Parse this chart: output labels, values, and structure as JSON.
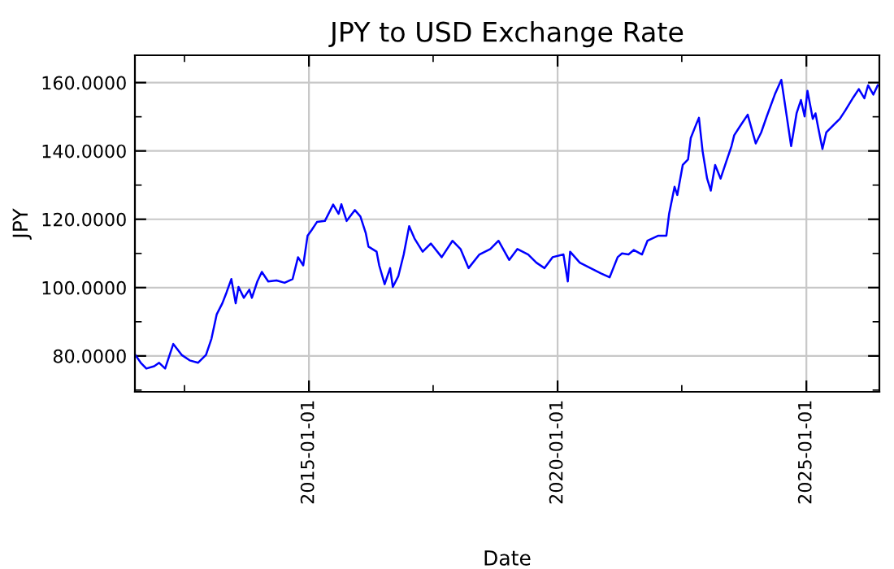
{
  "chart_data": {
    "type": "line",
    "title": "JPY to USD Exchange Rate",
    "xlabel": "Date",
    "ylabel": "JPY",
    "grid": true,
    "marker": "none",
    "line_style": "solid",
    "xlim": [
      "2011-07-03",
      "2026-06-21"
    ],
    "xticks": [
      {
        "value": "2012-07-01",
        "label": null
      },
      {
        "value": "2015-01-01",
        "label": "2015-01-01"
      },
      {
        "value": "2017-07-01",
        "label": null
      },
      {
        "value": "2020-01-01",
        "label": "2020-01-01"
      },
      {
        "value": "2022-07-01",
        "label": null
      },
      {
        "value": "2025-01-01",
        "label": "2025-01-01"
      }
    ],
    "ylim": [
      69.5,
      168
    ],
    "yticks": [
      {
        "value": 70,
        "label": null
      },
      {
        "value": 80,
        "label": "80.0000"
      },
      {
        "value": 90,
        "label": null
      },
      {
        "value": 100,
        "label": "100.0000"
      },
      {
        "value": 110,
        "label": null
      },
      {
        "value": 120,
        "label": "120.0000"
      },
      {
        "value": 130,
        "label": null
      },
      {
        "value": 140,
        "label": "140.0000"
      },
      {
        "value": 150,
        "label": null
      },
      {
        "value": 160,
        "label": "160.0000"
      }
    ],
    "x": [
      "2011-07-06",
      "2011-08-15",
      "2011-09-25",
      "2011-11-22",
      "2011-12-28",
      "2012-02-10",
      "2012-03-20",
      "2012-04-10",
      "2012-06-10",
      "2012-08-08",
      "2012-10-08",
      "2012-12-06",
      "2013-01-15",
      "2013-02-23",
      "2013-04-05",
      "2013-05-06",
      "2013-06-10",
      "2013-07-12",
      "2013-08-02",
      "2013-09-10",
      "2013-10-20",
      "2013-11-08",
      "2013-12-18",
      "2014-01-20",
      "2014-03-08",
      "2014-05-08",
      "2014-07-06",
      "2014-09-03",
      "2014-10-13",
      "2014-11-20",
      "2014-12-22",
      "2015-01-20",
      "2015-03-01",
      "2015-04-28",
      "2015-06-28",
      "2015-08-07",
      "2015-08-27",
      "2015-10-05",
      "2015-12-04",
      "2016-01-14",
      "2016-02-22",
      "2016-03-13",
      "2016-05-12",
      "2016-05-31",
      "2016-07-10",
      "2016-08-19",
      "2016-09-08",
      "2016-10-18",
      "2016-11-27",
      "2017-01-06",
      "2017-02-14",
      "2017-04-15",
      "2017-06-14",
      "2017-09-02",
      "2017-11-20",
      "2018-01-18",
      "2018-03-18",
      "2018-06-06",
      "2018-08-25",
      "2018-10-24",
      "2019-01-11",
      "2019-03-12",
      "2019-05-30",
      "2019-07-29",
      "2019-09-27",
      "2019-11-25",
      "2020-02-13",
      "2020-03-16",
      "2020-04-02",
      "2020-06-12",
      "2020-08-30",
      "2020-11-18",
      "2021-01-17",
      "2021-03-17",
      "2021-04-18",
      "2021-06-05",
      "2021-07-14",
      "2021-09-12",
      "2021-10-22",
      "2022-01-10",
      "2022-03-10",
      "2022-03-30",
      "2022-05-09",
      "2022-05-29",
      "2022-07-08",
      "2022-08-16",
      "2022-09-05",
      "2022-10-15",
      "2022-11-04",
      "2022-12-01",
      "2023-01-03",
      "2023-01-30",
      "2023-03-03",
      "2023-04-12",
      "2023-05-22",
      "2023-07-01",
      "2023-07-21",
      "2023-08-29",
      "2023-10-28",
      "2023-12-26",
      "2024-02-04",
      "2024-03-16",
      "2024-05-14",
      "2024-07-01",
      "2024-08-01",
      "2024-09-11",
      "2024-10-21",
      "2024-11-22",
      "2024-12-19",
      "2025-01-09",
      "2025-02-17",
      "2025-03-09",
      "2025-03-28",
      "2025-04-29",
      "2025-05-27",
      "2025-07-25",
      "2025-09-04",
      "2025-10-13",
      "2025-12-12",
      "2026-01-21",
      "2026-03-03",
      "2026-03-30",
      "2026-05-08",
      "2026-06-09"
    ],
    "series": [
      {
        "color": "#0000ff",
        "values": [
          80.3,
          78,
          76.3,
          77,
          78,
          76.3,
          81,
          83.5,
          80.3,
          78.7,
          78,
          80.3,
          85,
          92.2,
          95.4,
          98.6,
          102.5,
          95.4,
          100.2,
          97,
          99.4,
          97,
          101.8,
          104.6,
          101.8,
          102.1,
          101.4,
          102.5,
          108.9,
          106.5,
          115.2,
          116.8,
          119.2,
          119.5,
          124.3,
          121.6,
          124.4,
          119.5,
          122.7,
          120.8,
          116,
          112,
          110.5,
          106.5,
          101,
          105.7,
          100.2,
          103.3,
          109.7,
          118,
          114.4,
          110.5,
          112.9,
          108.9,
          113.7,
          111.3,
          105.7,
          109.7,
          111.3,
          113.7,
          108.1,
          111.3,
          109.7,
          107.3,
          105.7,
          108.9,
          109.7,
          101.8,
          110.5,
          107.3,
          105.7,
          104.1,
          103,
          108.9,
          110,
          109.7,
          111,
          109.7,
          113.7,
          115.2,
          115.2,
          121.6,
          129.5,
          127.1,
          135.9,
          137.5,
          143.8,
          147.8,
          149.7,
          139.9,
          131.9,
          128.4,
          135.9,
          131.9,
          136.7,
          141.4,
          144.6,
          147,
          150.6,
          142.2,
          145.4,
          150.1,
          156.5,
          160.8,
          152.5,
          141.4,
          151,
          154.9,
          150.1,
          157.6,
          149.4,
          151,
          147,
          140.6,
          145.4,
          147.8,
          149.4,
          151.8,
          155.7,
          158.1,
          155.4,
          159.2,
          156.5,
          159.2
        ]
      }
    ]
  }
}
